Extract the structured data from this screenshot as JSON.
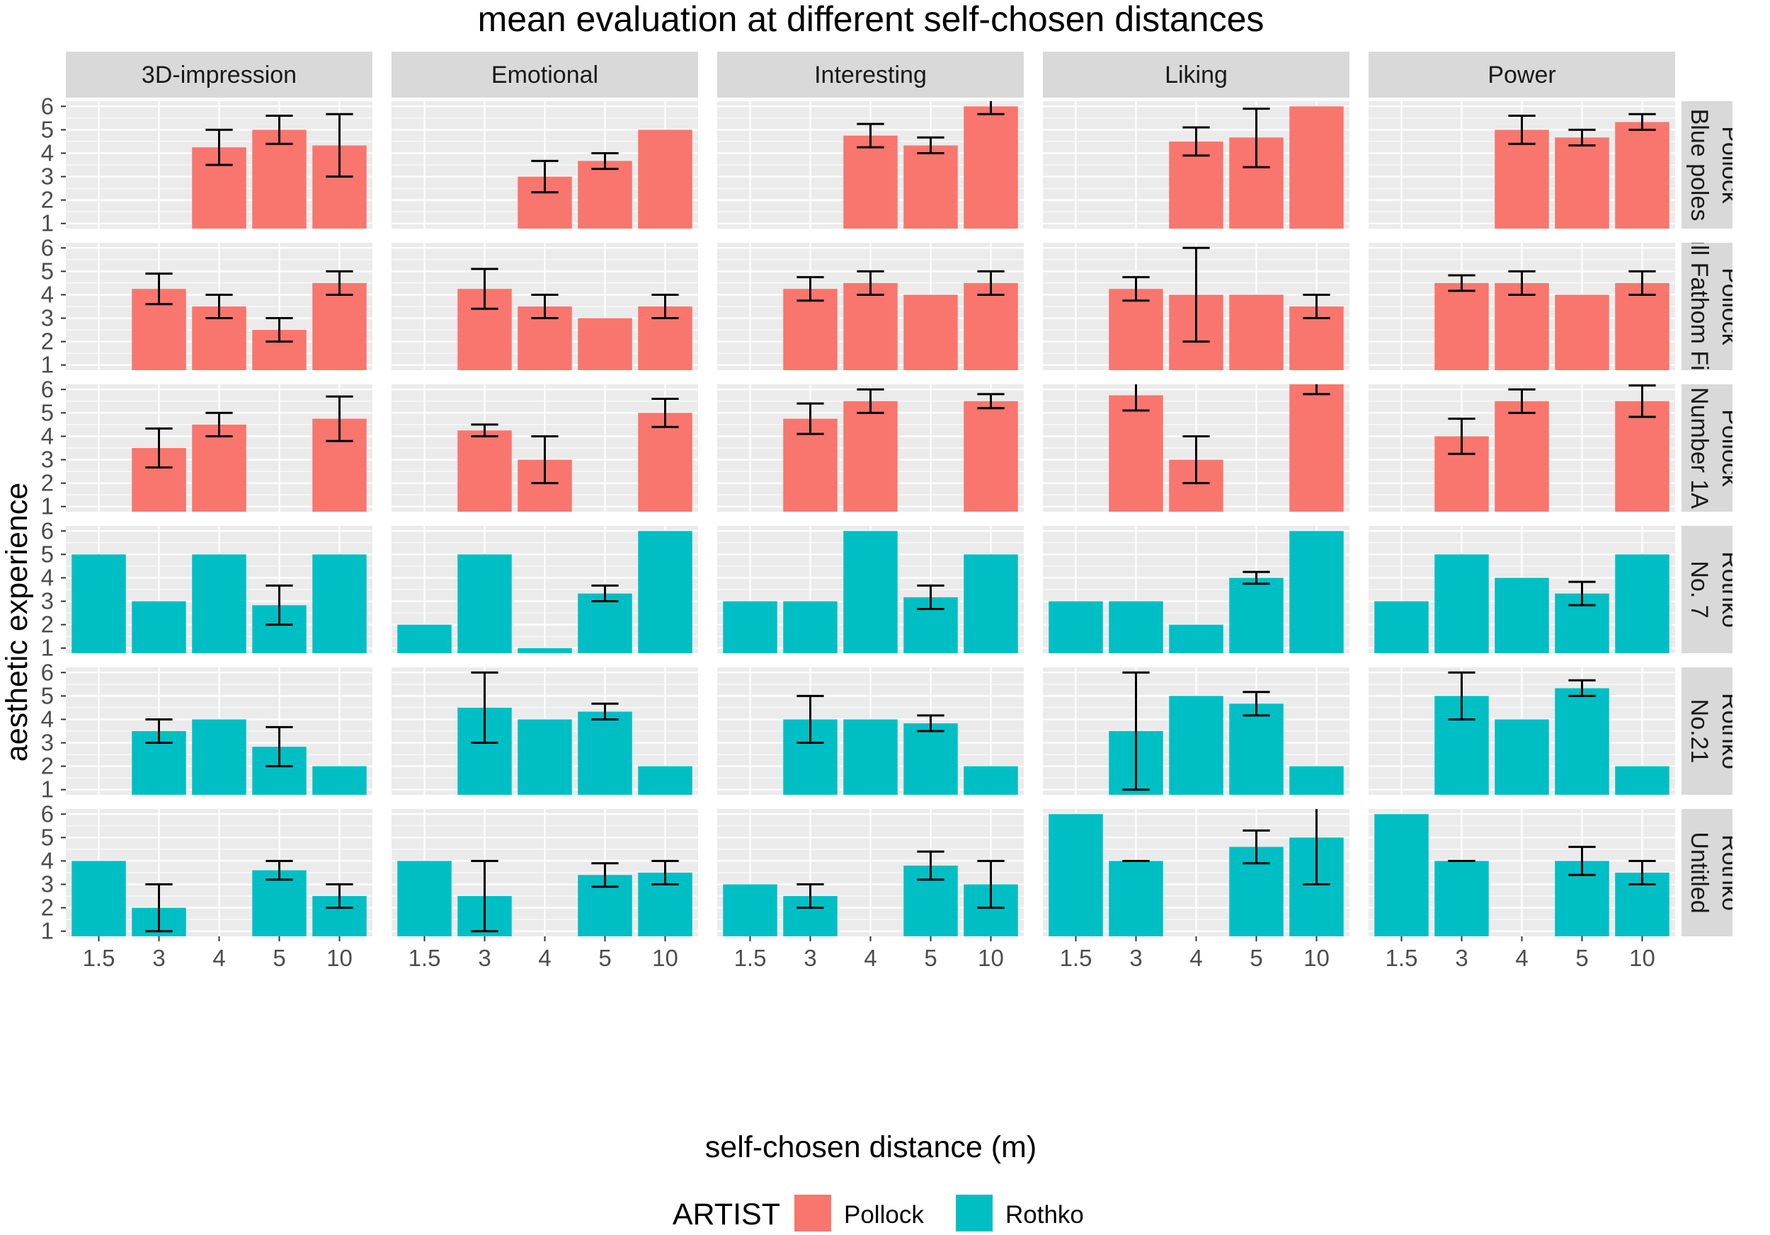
{
  "chart_data": {
    "type": "bar",
    "title": "mean evaluation at different self-chosen distances",
    "xlabel": "self-chosen distance (m)",
    "ylabel": "aesthetic experience",
    "categories": [
      "1.5",
      "3",
      "4",
      "5",
      "10"
    ],
    "y_ticks": [
      1,
      2,
      3,
      4,
      5,
      6
    ],
    "ylim": [
      0.78,
      6.22
    ],
    "facet_columns": [
      "3D-impression",
      "Emotional",
      "Interesting",
      "Liking",
      "Power"
    ],
    "facet_rows": [
      {
        "label_line1": "Pollock",
        "label_line2": "Blue poles",
        "artist": "Pollock"
      },
      {
        "label_line1": "Pollock",
        "label_line2": "Full Fathom Five",
        "artist": "Pollock"
      },
      {
        "label_line1": "Pollock",
        "label_line2": "Number 1A",
        "artist": "Pollock"
      },
      {
        "label_line1": "Rothko",
        "label_line2": "No. 7",
        "artist": "Rothko"
      },
      {
        "label_line1": "Rothko",
        "label_line2": "No.21",
        "artist": "Rothko"
      },
      {
        "label_line1": "Rothko",
        "label_line2": "Untitled",
        "artist": "Rothko"
      }
    ],
    "legend": {
      "title": "ARTIST",
      "placement": "bottom",
      "entries": [
        {
          "name": "Pollock",
          "color": "#F8766D"
        },
        {
          "name": "Rothko",
          "color": "#00BFC4"
        }
      ]
    },
    "cells": [
      [
        [
          null,
          null,
          [
            4.25,
            3.5,
            5.0
          ],
          [
            5.0,
            4.4,
            5.6
          ],
          [
            4.33,
            3.0,
            5.67
          ]
        ],
        [
          null,
          null,
          [
            3.0,
            2.33,
            3.67
          ],
          [
            3.67,
            3.33,
            4.0
          ],
          [
            5.0,
            null,
            null
          ]
        ],
        [
          null,
          null,
          [
            4.75,
            4.25,
            5.25
          ],
          [
            4.33,
            4.0,
            4.67
          ],
          [
            6.0,
            5.67,
            6.33
          ]
        ],
        [
          null,
          null,
          [
            4.5,
            3.9,
            5.1
          ],
          [
            4.67,
            3.4,
            5.9
          ],
          [
            6.0,
            null,
            null
          ]
        ],
        [
          null,
          null,
          [
            5.0,
            4.4,
            5.6
          ],
          [
            4.67,
            4.33,
            5.0
          ],
          [
            5.33,
            5.0,
            5.67
          ]
        ]
      ],
      [
        [
          null,
          [
            4.25,
            3.6,
            4.9
          ],
          [
            3.5,
            3.0,
            4.0
          ],
          [
            2.5,
            2.0,
            3.0
          ],
          [
            4.5,
            4.0,
            5.0
          ]
        ],
        [
          null,
          [
            4.25,
            3.4,
            5.1
          ],
          [
            3.5,
            3.0,
            4.0
          ],
          [
            3.0,
            null,
            null
          ],
          [
            3.5,
            3.0,
            4.0
          ]
        ],
        [
          null,
          [
            4.25,
            3.75,
            4.75
          ],
          [
            4.5,
            4.0,
            5.0
          ],
          [
            4.0,
            null,
            null
          ],
          [
            4.5,
            4.0,
            5.0
          ]
        ],
        [
          null,
          [
            4.25,
            3.75,
            4.75
          ],
          [
            4.0,
            2.0,
            6.0
          ],
          [
            4.0,
            null,
            null
          ],
          [
            3.5,
            3.0,
            4.0
          ]
        ],
        [
          null,
          [
            4.5,
            4.17,
            4.83
          ],
          [
            4.5,
            4.0,
            5.0
          ],
          [
            4.0,
            null,
            null
          ],
          [
            4.5,
            4.0,
            5.0
          ]
        ]
      ],
      [
        [
          null,
          [
            3.5,
            2.67,
            4.33
          ],
          [
            4.5,
            4.0,
            5.0
          ],
          null,
          [
            4.75,
            3.8,
            5.7
          ]
        ],
        [
          null,
          [
            4.25,
            4.0,
            4.5
          ],
          [
            3.0,
            2.0,
            4.0
          ],
          null,
          [
            5.0,
            4.4,
            5.6
          ]
        ],
        [
          null,
          [
            4.75,
            4.1,
            5.4
          ],
          [
            5.5,
            5.0,
            6.0
          ],
          null,
          [
            5.5,
            5.2,
            5.8
          ]
        ],
        [
          null,
          [
            5.75,
            5.1,
            6.4
          ],
          [
            3.0,
            2.0,
            4.0
          ],
          null,
          [
            6.25,
            5.8,
            6.7
          ]
        ],
        [
          null,
          [
            4.0,
            3.25,
            4.75
          ],
          [
            5.5,
            5.0,
            6.0
          ],
          null,
          [
            5.5,
            4.83,
            6.17
          ]
        ]
      ],
      [
        [
          [
            5.0,
            null,
            null
          ],
          [
            3.0,
            null,
            null
          ],
          [
            5.0,
            null,
            null
          ],
          [
            2.83,
            2.0,
            3.67
          ],
          [
            5.0,
            null,
            null
          ]
        ],
        [
          [
            2.0,
            null,
            null
          ],
          [
            5.0,
            null,
            null
          ],
          [
            1.0,
            null,
            null
          ],
          [
            3.33,
            3.0,
            3.67
          ],
          [
            6.0,
            null,
            null
          ]
        ],
        [
          [
            3.0,
            null,
            null
          ],
          [
            3.0,
            null,
            null
          ],
          [
            6.0,
            null,
            null
          ],
          [
            3.17,
            2.67,
            3.67
          ],
          [
            5.0,
            null,
            null
          ]
        ],
        [
          [
            3.0,
            null,
            null
          ],
          [
            3.0,
            null,
            null
          ],
          [
            2.0,
            null,
            null
          ],
          [
            4.0,
            3.75,
            4.25
          ],
          [
            6.0,
            null,
            null
          ]
        ],
        [
          [
            3.0,
            null,
            null
          ],
          [
            5.0,
            null,
            null
          ],
          [
            4.0,
            null,
            null
          ],
          [
            3.33,
            2.83,
            3.83
          ],
          [
            5.0,
            null,
            null
          ]
        ]
      ],
      [
        [
          null,
          [
            3.5,
            3.0,
            4.0
          ],
          [
            4.0,
            null,
            null
          ],
          [
            2.83,
            2.0,
            3.67
          ],
          [
            2.0,
            null,
            null
          ]
        ],
        [
          null,
          [
            4.5,
            3.0,
            6.0
          ],
          [
            4.0,
            null,
            null
          ],
          [
            4.33,
            4.0,
            4.67
          ],
          [
            2.0,
            null,
            null
          ]
        ],
        [
          null,
          [
            4.0,
            3.0,
            5.0
          ],
          [
            4.0,
            null,
            null
          ],
          [
            3.83,
            3.5,
            4.17
          ],
          [
            2.0,
            null,
            null
          ]
        ],
        [
          null,
          [
            3.5,
            1.0,
            6.0
          ],
          [
            5.0,
            null,
            null
          ],
          [
            4.67,
            4.17,
            5.17
          ],
          [
            2.0,
            null,
            null
          ]
        ],
        [
          null,
          [
            5.0,
            4.0,
            6.0
          ],
          [
            4.0,
            null,
            null
          ],
          [
            5.33,
            5.0,
            5.67
          ],
          [
            2.0,
            null,
            null
          ]
        ]
      ],
      [
        [
          [
            4.0,
            null,
            null
          ],
          [
            2.0,
            1.0,
            3.0
          ],
          null,
          [
            3.6,
            3.2,
            4.0
          ],
          [
            2.5,
            2.0,
            3.0
          ]
        ],
        [
          [
            4.0,
            null,
            null
          ],
          [
            2.5,
            1.0,
            4.0
          ],
          null,
          [
            3.4,
            2.9,
            3.9
          ],
          [
            3.5,
            3.0,
            4.0
          ]
        ],
        [
          [
            3.0,
            null,
            null
          ],
          [
            2.5,
            2.0,
            3.0
          ],
          null,
          [
            3.8,
            3.2,
            4.4
          ],
          [
            3.0,
            2.0,
            4.0
          ]
        ],
        [
          [
            6.0,
            null,
            null
          ],
          [
            4.0,
            4.0,
            4.0
          ],
          null,
          [
            4.6,
            3.9,
            5.3
          ],
          [
            5.0,
            3.0,
            7.0
          ]
        ],
        [
          [
            6.0,
            null,
            null
          ],
          [
            4.0,
            4.0,
            4.0
          ],
          null,
          [
            4.0,
            3.4,
            4.6
          ],
          [
            3.5,
            3.0,
            4.0
          ]
        ]
      ]
    ]
  }
}
